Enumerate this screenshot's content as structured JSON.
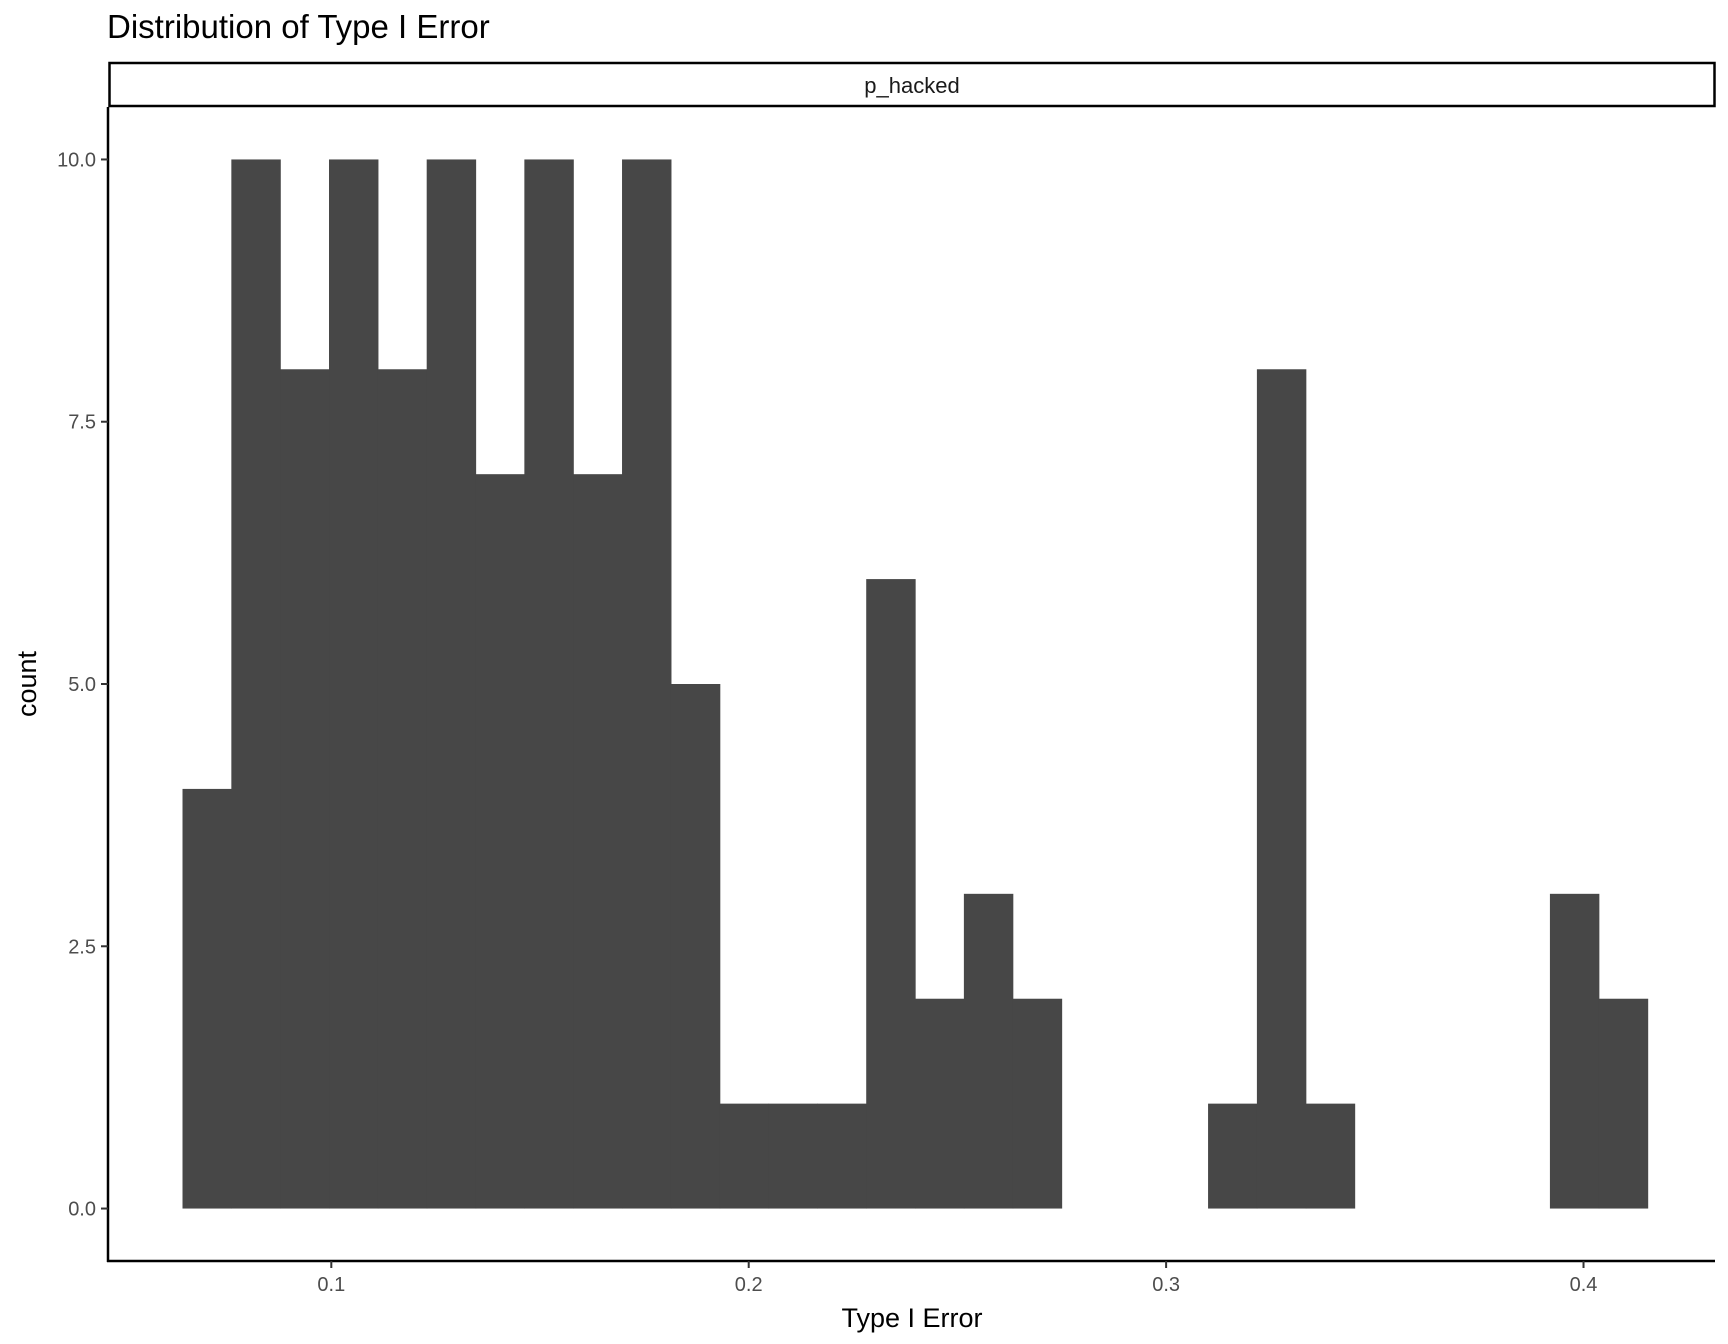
{
  "chart_data": {
    "type": "bar",
    "title": "Distribution of Type I Error",
    "facet_label": "p_hacked",
    "xlabel": "Type I Error",
    "ylabel": "count",
    "xlim": [
      0.0465,
      0.4315
    ],
    "ylim": [
      -0.5,
      10.5
    ],
    "x_ticks": [
      0.1,
      0.2,
      0.3,
      0.4
    ],
    "x_tick_labels": [
      "0.1",
      "0.2",
      "0.3",
      "0.4"
    ],
    "y_ticks": [
      0.0,
      2.5,
      5.0,
      7.5,
      10.0
    ],
    "y_tick_labels": [
      "0.0",
      "2.5",
      "5.0",
      "7.5",
      "10.0"
    ],
    "bin_width": 0.0117,
    "bins": [
      {
        "x": 0.0702,
        "count": 4
      },
      {
        "x": 0.0819,
        "count": 10
      },
      {
        "x": 0.0936,
        "count": 8
      },
      {
        "x": 0.1053,
        "count": 10
      },
      {
        "x": 0.117,
        "count": 8
      },
      {
        "x": 0.1287,
        "count": 10
      },
      {
        "x": 0.1404,
        "count": 7
      },
      {
        "x": 0.1521,
        "count": 10
      },
      {
        "x": 0.1638,
        "count": 7
      },
      {
        "x": 0.1755,
        "count": 10
      },
      {
        "x": 0.1872,
        "count": 5
      },
      {
        "x": 0.1989,
        "count": 1
      },
      {
        "x": 0.2106,
        "count": 1
      },
      {
        "x": 0.2223,
        "count": 1
      },
      {
        "x": 0.234,
        "count": 6
      },
      {
        "x": 0.2457,
        "count": 2
      },
      {
        "x": 0.2574,
        "count": 3
      },
      {
        "x": 0.2691,
        "count": 2
      },
      {
        "x": 0.2808,
        "count": 0
      },
      {
        "x": 0.2925,
        "count": 0
      },
      {
        "x": 0.3042,
        "count": 0
      },
      {
        "x": 0.3159,
        "count": 1
      },
      {
        "x": 0.3276,
        "count": 8
      },
      {
        "x": 0.3393,
        "count": 1
      },
      {
        "x": 0.351,
        "count": 0
      },
      {
        "x": 0.3627,
        "count": 0
      },
      {
        "x": 0.3744,
        "count": 0
      },
      {
        "x": 0.3861,
        "count": 0
      },
      {
        "x": 0.3978,
        "count": 3
      },
      {
        "x": 0.4095,
        "count": 2
      }
    ],
    "bar_color": "#474747",
    "grid": false,
    "legend": "none"
  }
}
